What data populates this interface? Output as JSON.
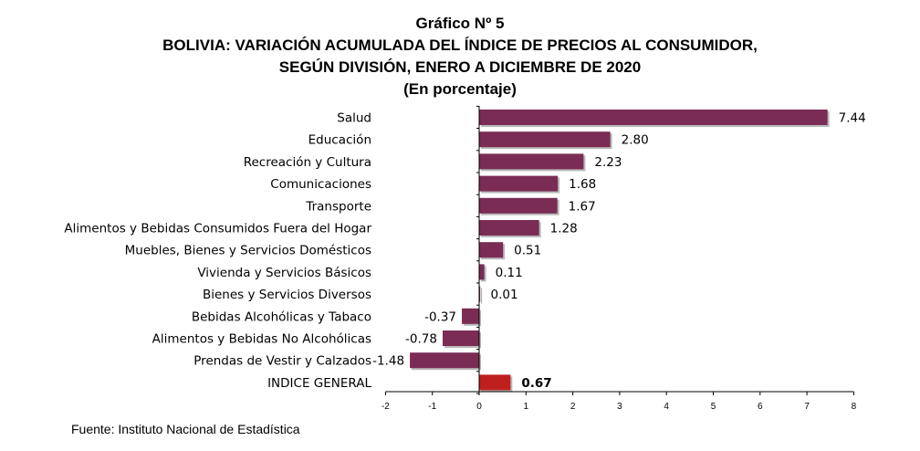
{
  "title": {
    "line1": "Gráfico Nº 5",
    "line2": "BOLIVIA: VARIACIÓN ACUMULADA DEL ÍNDICE DE PRECIOS AL CONSUMIDOR,",
    "line3": "SEGÚN DIVISIÓN, ENERO A DICIEMBRE DE 2020",
    "line4": "(En porcentaje)"
  },
  "source": "Fuente: Instituto Nacional de Estadística",
  "colors": {
    "bar": "#7b2c54",
    "bar_highlight": "#c0201d",
    "axis": "#000000"
  },
  "chart_data": {
    "type": "bar",
    "orientation": "horizontal",
    "categories": [
      "Salud",
      "Educación",
      "Recreación y Cultura",
      "Comunicaciones",
      "Transporte",
      "Alimentos y Bebidas Consumidos Fuera del Hogar",
      "Muebles, Bienes y Servicios Domésticos",
      "Vivienda y Servicios Básicos",
      "Bienes y Servicios Diversos",
      "Bebidas Alcohólicas y Tabaco",
      "Alimentos y Bebidas No Alcohólicas",
      "Prendas de Vestir y Calzados",
      "INDICE GENERAL"
    ],
    "values": [
      7.44,
      2.8,
      2.23,
      1.68,
      1.67,
      1.28,
      0.51,
      0.11,
      0.01,
      -0.37,
      -0.78,
      -1.48,
      0.67
    ],
    "value_labels": [
      "7.44",
      "2.80",
      "2.23",
      "1.68",
      "1.67",
      "1.28",
      "0.51",
      "0.11",
      "0.01",
      "-0.37",
      "-0.78",
      "-1.48",
      "0.67"
    ],
    "highlight_index": 12,
    "xlim": [
      -2,
      8
    ],
    "xticks": [
      -2,
      -1,
      0,
      1,
      2,
      3,
      4,
      5,
      6,
      7,
      8
    ],
    "grid": false,
    "legend": "none"
  }
}
